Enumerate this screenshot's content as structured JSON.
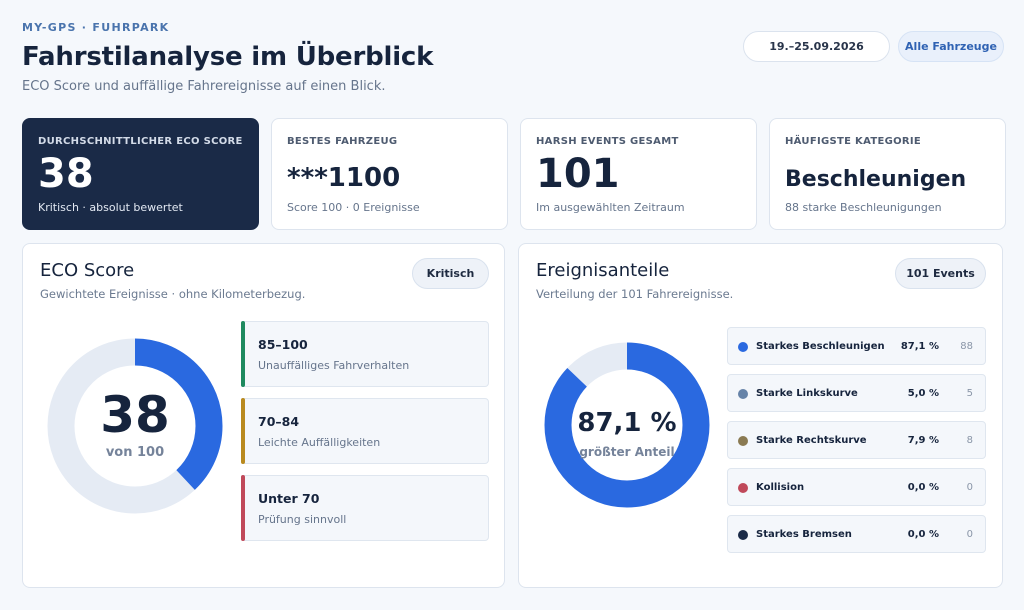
{
  "header": {
    "eyebrow": "MY-GPS · FUHRPARK",
    "title": "Fahrstilanalyse im Überblick",
    "subtitle": "ECO Score und auffällige Fahrereignisse auf einen Blick.",
    "date_range": "19.–25.09.2026",
    "vehicle_filter": "Alle Fahrzeuge"
  },
  "kpis": [
    {
      "label": "DURCHSCHNITTLICHER ECO SCORE",
      "value": "38",
      "note": "Kritisch · absolut bewertet"
    },
    {
      "label": "BESTES FAHRZEUG",
      "value": "***1100",
      "note": "Score 100 · 0 Ereignisse"
    },
    {
      "label": "HARSH EVENTS GESAMT",
      "value": "101",
      "note": "Im ausgewählten Zeitraum"
    },
    {
      "label": "HÄUFIGSTE KATEGORIE",
      "value": "Beschleunigen",
      "note": "88 starke Beschleunigungen"
    }
  ],
  "eco_panel": {
    "title": "ECO Score",
    "subtitle": "Gewichtete Ereignisse · ohne Kilometerbezug.",
    "badge": "Kritisch",
    "score": 38,
    "max": 100,
    "score_text": "38",
    "score_caption": "von 100",
    "colors": {
      "fill": "#2a69e0",
      "track": "#e5ebf4"
    },
    "ranges": [
      {
        "title": "85–100",
        "desc": "Unauffälliges Fahrverhalten",
        "color": "#1f8a5f"
      },
      {
        "title": "70–84",
        "desc": "Leichte Auffälligkeiten",
        "color": "#b98a1f"
      },
      {
        "title": "Unter 70",
        "desc": "Prüfung sinnvoll",
        "color": "#c0495a"
      }
    ]
  },
  "events_panel": {
    "title": "Ereignisanteile",
    "subtitle": "Verteilung der 101 Fahrereignisse.",
    "badge": "101 Events",
    "center_value": "87,1 %",
    "center_caption": "größter Anteil",
    "track_color": "#e5ebf4",
    "items": [
      {
        "name": "Starkes Beschleunigen",
        "pct": "87,1 %",
        "count": "88",
        "fraction": 0.871,
        "color": "#2a69e0"
      },
      {
        "name": "Starke Linkskurve",
        "pct": "5,0 %",
        "count": "5",
        "fraction": 0.05,
        "color": "#6683a8"
      },
      {
        "name": "Starke Rechtskurve",
        "pct": "7,9 %",
        "count": "8",
        "fraction": 0.079,
        "color": "#8a7a52"
      },
      {
        "name": "Kollision",
        "pct": "0,0 %",
        "count": "0",
        "fraction": 0,
        "color": "#c0495a"
      },
      {
        "name": "Starkes Bremsen",
        "pct": "0,0 %",
        "count": "0",
        "fraction": 0,
        "color": "#1a2a47"
      }
    ]
  }
}
